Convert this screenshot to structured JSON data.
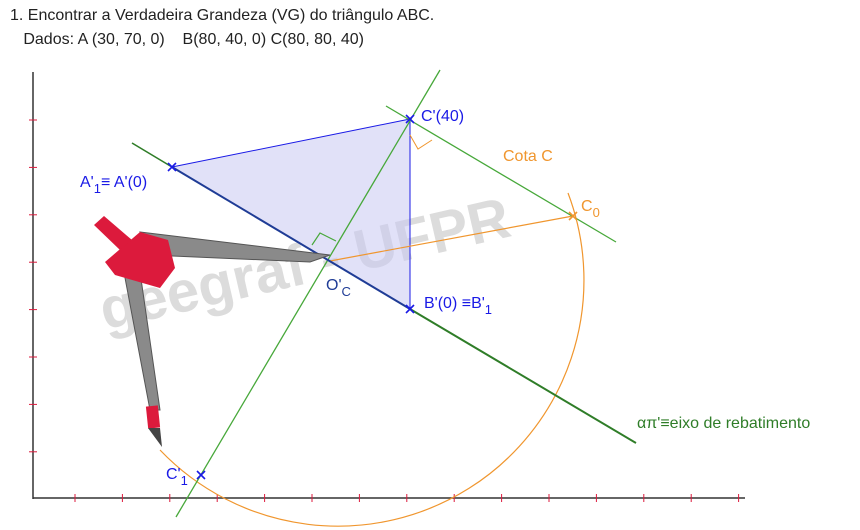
{
  "title": {
    "line1": "1. Encontrar a Verdadeira Grandeza (VG) do triângulo ABC.",
    "line2": "   Dados: A (30, 70, 0)    B(80, 40, 0) C(80, 80, 40)"
  },
  "watermark": "geegraf - UFPR",
  "labels": {
    "a1": "A'",
    "a1_sub": "1",
    "a1_rest": "≡ A'(0)",
    "c_prime": "C'(40)",
    "cota_c": "Cota C",
    "c0": "C",
    "c0_sub": "0",
    "oc": "O'",
    "oc_sub": "C",
    "b_prime": "B'(0) ≡B'",
    "b_sub": "1",
    "c1": "C'",
    "c1_sub": "1",
    "axis": "απ'≡eixo de rebatimento"
  },
  "colors": {
    "blue": "#1a1ae6",
    "navy": "#1f3c96",
    "green": "#47a83a",
    "dark_green": "#2f7d28",
    "orange": "#f0962e",
    "triangle_fill": "#c9c9f2",
    "compass_red": "#dc1a3c",
    "compass_gray": "#8a8a8a"
  }
}
